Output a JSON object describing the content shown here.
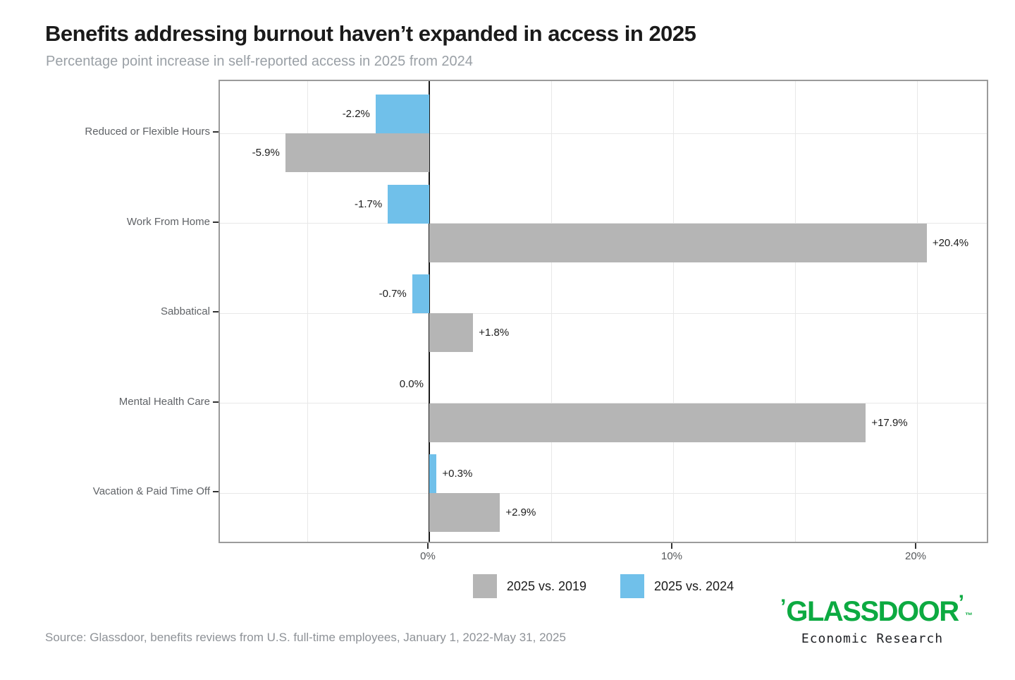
{
  "chart_data": {
    "type": "bar",
    "orientation": "horizontal",
    "title": "Benefits addressing burnout haven’t expanded in access in 2025",
    "subtitle": "Percentage point increase in self-reported access in 2025 from 2024",
    "categories": [
      "Reduced or Flexible Hours",
      "Work From Home",
      "Sabbatical",
      "Mental Health Care",
      "Vacation & Paid Time Off"
    ],
    "series": [
      {
        "name": "2025 vs. 2024",
        "color": "#70C0EA",
        "values": [
          -2.2,
          -1.7,
          -0.7,
          0.0,
          0.3
        ],
        "labels": [
          "-2.2%",
          "-1.7%",
          "-0.7%",
          "0.0%",
          "+0.3%"
        ]
      },
      {
        "name": "2025 vs. 2019",
        "color": "#B5B5B5",
        "values": [
          -5.9,
          20.4,
          1.8,
          17.9,
          2.9
        ],
        "labels": [
          "-5.9%",
          "+20.4%",
          "+1.8%",
          "+17.9%",
          "+2.9%"
        ]
      }
    ],
    "x_ticks": [
      {
        "value": 0,
        "label": "0%"
      },
      {
        "value": 10,
        "label": "10%"
      },
      {
        "value": 20,
        "label": "20%"
      }
    ],
    "gridline_values": [
      -5,
      5,
      10,
      15,
      20
    ],
    "xlim": [
      -8.6,
      23.0
    ],
    "grid": "on",
    "legend_position": "bottom-center",
    "legend": [
      {
        "label": "2025 vs. 2019",
        "color": "#B5B5B5"
      },
      {
        "label": "2025 vs. 2024",
        "color": "#70C0EA"
      }
    ]
  },
  "footer": {
    "source": "Source: Glassdoor, benefits reviews from U.S. full-time employees, January 1, 2022-May 31, 2025",
    "logo_text": "GLASSDOOR",
    "logo_quote_left": "’",
    "logo_quote_right": "’",
    "logo_tm": "™",
    "logo_subtext": "Economic Research",
    "logo_color": "#0CAA41"
  }
}
